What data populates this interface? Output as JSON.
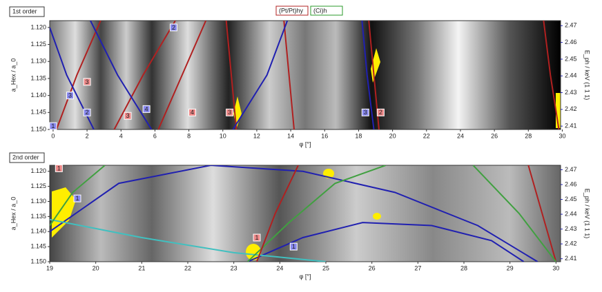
{
  "chart_data": [
    {
      "type": "line",
      "title": "1st order",
      "legend": [
        "(Pt/Pt)hy",
        "(Ci)h"
      ],
      "xlabel": "φ [°]",
      "ylabel": "a_Hex / a_0",
      "y2label": "E_ph / keV (1 1 1)",
      "xlim": [
        -0.2,
        29.9
      ],
      "xticks": [
        0,
        2,
        4,
        6,
        8,
        10,
        12,
        14,
        16,
        18,
        20,
        22,
        24,
        26,
        28,
        30
      ],
      "ylim": [
        1.15,
        1.118
      ],
      "yticks": [
        {
          "value": 1.12,
          "label": "1.120"
        },
        1.125,
        {
          "value": 1.13,
          "label": "1.130"
        },
        1.135,
        {
          "value": 1.14,
          "label": "1.140"
        },
        1.145,
        {
          "value": 1.15,
          "label": "1.150"
        }
      ],
      "y2lim": [
        2.408,
        2.473
      ],
      "y2ticks": [
        2.41,
        2.42,
        2.43,
        2.44,
        2.45,
        2.46,
        2.47
      ],
      "series": [
        {
          "color": "#b02020",
          "x": [
            10.8,
            10.5,
            10.2
          ],
          "values": [
            1.15,
            1.134,
            1.118
          ]
        },
        {
          "color": "#b02020",
          "x": [
            14.2,
            13.9,
            13.6
          ],
          "values": [
            1.15,
            1.134,
            1.118
          ]
        },
        {
          "color": "#b02020",
          "x": [
            19.2,
            18.9,
            18.6
          ],
          "values": [
            1.15,
            1.134,
            1.118
          ]
        },
        {
          "color": "#b02020",
          "x": [
            29.8,
            29.3,
            28.9
          ],
          "values": [
            1.15,
            1.134,
            1.118
          ]
        },
        {
          "color": "#b02020",
          "x": [
            3.6,
            5.3,
            7.2
          ],
          "values": [
            1.15,
            1.134,
            1.118
          ]
        },
        {
          "color": "#b02020",
          "x": [
            6.2,
            7.6,
            9.0
          ],
          "values": [
            1.15,
            1.134,
            1.118
          ]
        },
        {
          "color": "#b02020",
          "x": [
            0.2,
            1.4,
            2.8
          ],
          "values": [
            1.15,
            1.134,
            1.118
          ]
        },
        {
          "color": "#2020b0",
          "x": [
            5.8,
            3.8,
            2.2
          ],
          "values": [
            1.15,
            1.134,
            1.118
          ]
        },
        {
          "color": "#2020b0",
          "x": [
            2.4,
            0.8,
            -0.2
          ],
          "values": [
            1.15,
            1.134,
            1.12
          ]
        },
        {
          "color": "#2020b0",
          "x": [
            10.6,
            12.6,
            13.8
          ],
          "values": [
            1.15,
            1.134,
            1.118
          ]
        },
        {
          "color": "#2020b0",
          "x": [
            18.9,
            18.5,
            18.2
          ],
          "values": [
            1.15,
            1.134,
            1.118
          ]
        }
      ],
      "markers": [
        {
          "x": 0.0,
          "y": 1.149,
          "label": "1",
          "color": "#8888ee"
        },
        {
          "x": 1.0,
          "y": 1.14,
          "label": "3",
          "color": "#8888ee"
        },
        {
          "x": 2.0,
          "y": 1.145,
          "label": "2",
          "color": "#8888ee"
        },
        {
          "x": 2.0,
          "y": 1.136,
          "label": "3",
          "color": "#ee8888"
        },
        {
          "x": 4.4,
          "y": 1.146,
          "label": "3",
          "color": "#ee8888"
        },
        {
          "x": 5.5,
          "y": 1.144,
          "label": "4",
          "color": "#8888ee"
        },
        {
          "x": 8.2,
          "y": 1.145,
          "label": "4",
          "color": "#ee8888"
        },
        {
          "x": 10.4,
          "y": 1.145,
          "label": "3",
          "color": "#ee8888"
        },
        {
          "x": 7.1,
          "y": 1.12,
          "label": "2",
          "color": "#8888ee"
        },
        {
          "x": 18.4,
          "y": 1.145,
          "label": "3",
          "color": "#8888ee"
        },
        {
          "x": 19.3,
          "y": 1.145,
          "label": "2",
          "color": "#ee8888"
        }
      ]
    },
    {
      "type": "line",
      "title": "2nd order",
      "xlabel": "φ [°]",
      "ylabel": "a_Hex / a_0",
      "y2label": "E_ph / keV (1 1 1)",
      "xlim": [
        19,
        30.1
      ],
      "xticks": [
        19,
        20,
        21,
        22,
        23,
        24,
        25,
        26,
        27,
        28,
        29,
        30
      ],
      "ylim": [
        1.15,
        1.118
      ],
      "yticks": [
        {
          "value": 1.12,
          "label": "1.120"
        },
        1.125,
        {
          "value": 1.13,
          "label": "1.130"
        },
        1.135,
        {
          "value": 1.14,
          "label": "1.140"
        },
        1.145,
        {
          "value": 1.15,
          "label": "1.150"
        }
      ],
      "y2lim": [
        2.408,
        2.473
      ],
      "y2ticks": [
        2.41,
        2.42,
        2.43,
        2.44,
        2.45,
        2.46,
        2.47
      ],
      "series": [
        {
          "color": "#2020b0",
          "x": [
            19,
            20.5,
            22.5,
            24.5,
            26.5,
            28.3,
            29.6
          ],
          "values": [
            1.14,
            1.124,
            1.118,
            1.12,
            1.127,
            1.138,
            1.15
          ]
        },
        {
          "color": "#2020b0",
          "x": [
            23.3,
            24.5,
            25.8,
            27.3,
            28.6,
            29.3
          ],
          "values": [
            1.15,
            1.142,
            1.137,
            1.138,
            1.143,
            1.15
          ]
        },
        {
          "color": "#40c0c0",
          "x": [
            19,
            21,
            23,
            25
          ],
          "values": [
            1.136,
            1.142,
            1.147,
            1.15
          ]
        },
        {
          "color": "#40a040",
          "x": [
            19,
            19.5,
            20.2
          ],
          "values": [
            1.138,
            1.127,
            1.118
          ]
        },
        {
          "color": "#40a040",
          "x": [
            23.3,
            24.2,
            25.2,
            26.3
          ],
          "values": [
            1.15,
            1.137,
            1.124,
            1.118
          ]
        },
        {
          "color": "#b02020",
          "x": [
            23.5,
            23.9,
            24.4
          ],
          "values": [
            1.15,
            1.134,
            1.118
          ]
        },
        {
          "color": "#b02020",
          "x": [
            30,
            29.7,
            29.4
          ],
          "values": [
            1.15,
            1.134,
            1.118
          ]
        },
        {
          "color": "#40a040",
          "x": [
            30,
            29.2,
            28.2
          ],
          "values": [
            1.15,
            1.134,
            1.118
          ]
        }
      ],
      "markers": [
        {
          "x": 19.2,
          "y": 1.119,
          "label": "1",
          "color": "#ee8888"
        },
        {
          "x": 19.6,
          "y": 1.129,
          "label": "1",
          "color": "#8888ee"
        },
        {
          "x": 23.5,
          "y": 1.142,
          "label": "1",
          "color": "#ee8888"
        },
        {
          "x": 24.3,
          "y": 1.145,
          "label": "1",
          "color": "#8888ee"
        }
      ]
    }
  ]
}
